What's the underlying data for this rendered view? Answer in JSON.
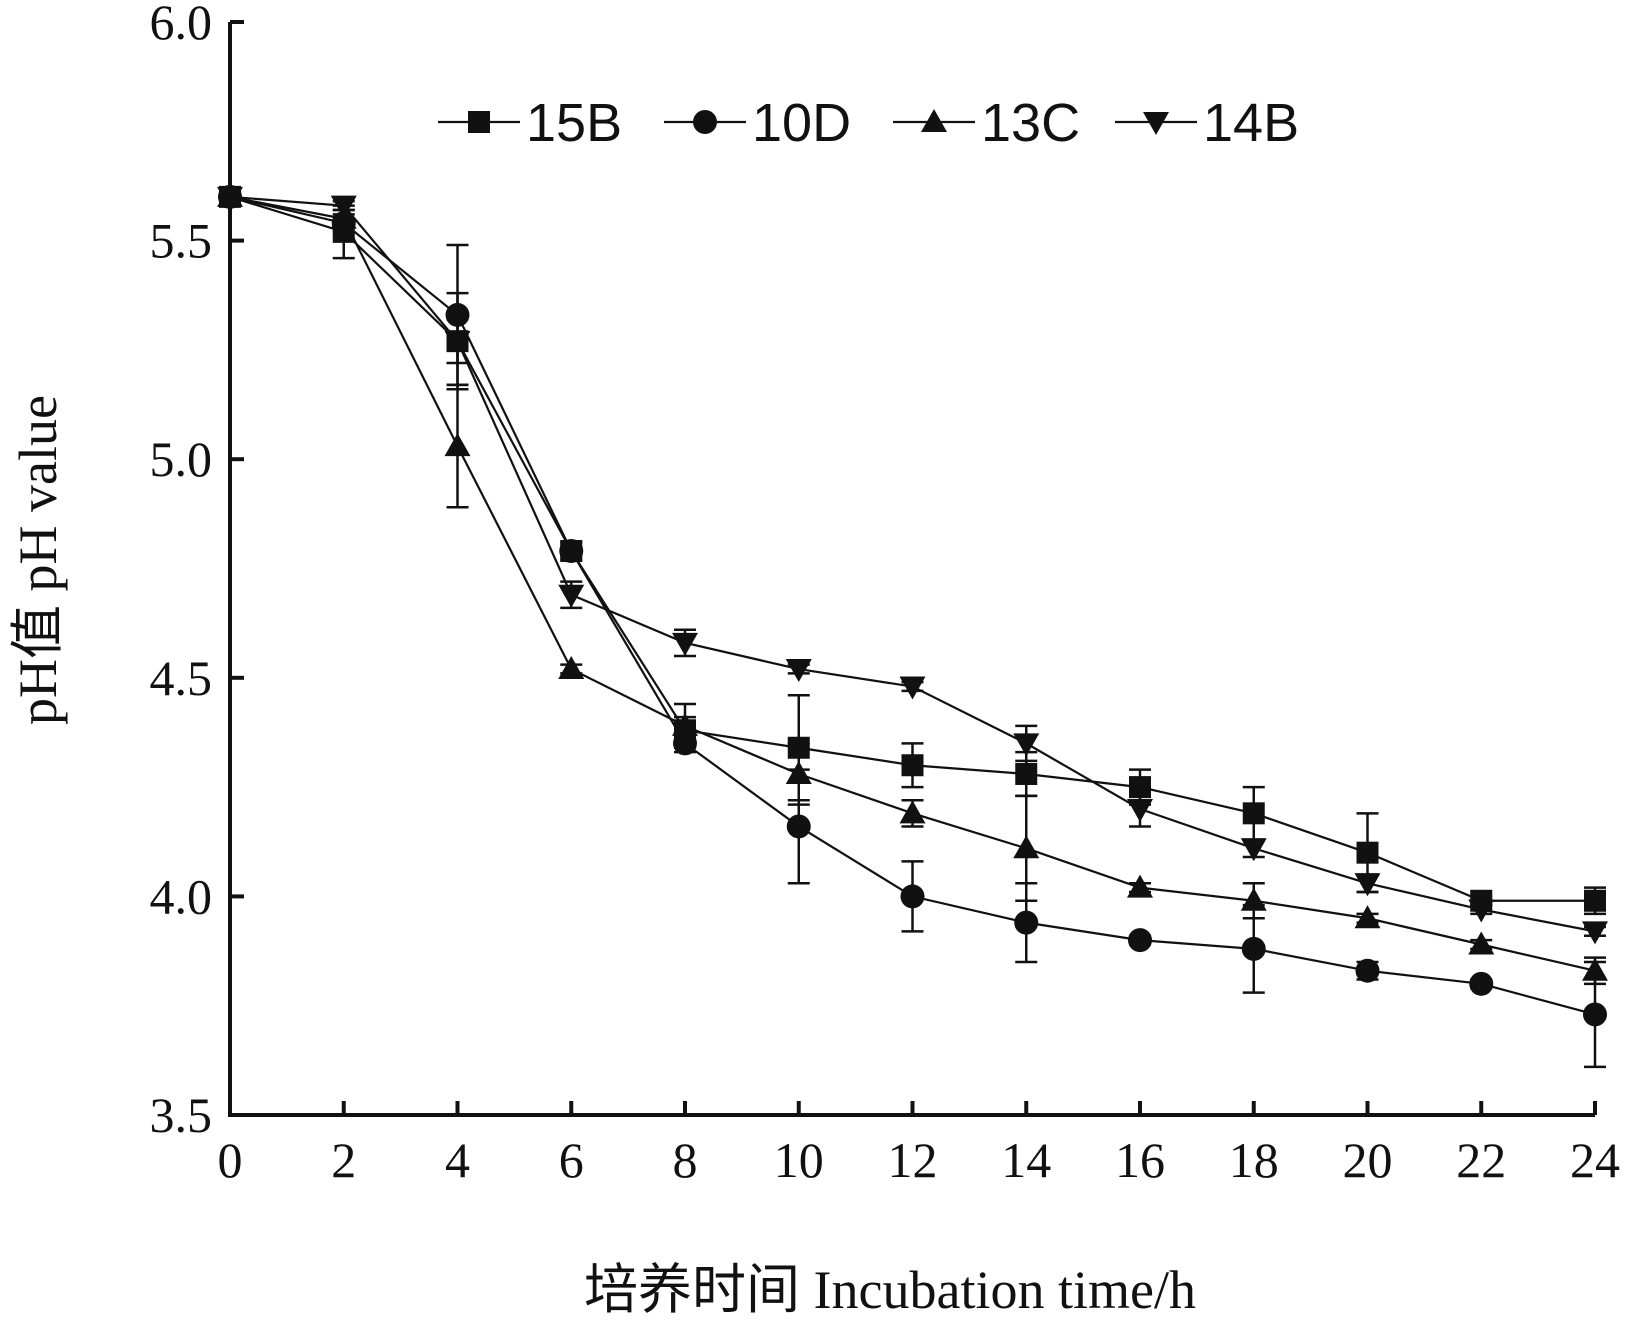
{
  "chart_data": {
    "type": "line",
    "xlabel": "培养时间 Incubation time/h",
    "ylabel": "pH值 pH value",
    "xlim": [
      0,
      24
    ],
    "ylim": [
      3.5,
      6.0
    ],
    "xticks": [
      "0",
      "2",
      "4",
      "6",
      "8",
      "10",
      "12",
      "14",
      "16",
      "18",
      "20",
      "22",
      "24"
    ],
    "yticks": [
      "3.5",
      "4.0",
      "4.5",
      "5.0",
      "5.5",
      "6.0"
    ],
    "grid": false,
    "legend_position": "top",
    "x": [
      0,
      2,
      4,
      6,
      8,
      10,
      12,
      14,
      16,
      18,
      20,
      22,
      24
    ],
    "series": [
      {
        "name": "15B",
        "marker": "square",
        "values": [
          5.6,
          5.52,
          5.27,
          4.79,
          4.38,
          4.34,
          4.3,
          4.28,
          4.25,
          4.19,
          4.1,
          3.99,
          3.99
        ],
        "errors": [
          0.0,
          0.06,
          0.11,
          0.02,
          0.03,
          0.12,
          0.05,
          0.05,
          0.04,
          0.06,
          0.09,
          0.01,
          0.03
        ]
      },
      {
        "name": "10D",
        "marker": "circle",
        "values": [
          5.6,
          5.54,
          5.33,
          4.79,
          4.35,
          4.16,
          4.0,
          3.94,
          3.9,
          3.88,
          3.83,
          3.8,
          3.73
        ],
        "errors": [
          0.0,
          0.02,
          0.16,
          0.01,
          0.02,
          0.13,
          0.08,
          0.09,
          0.01,
          0.1,
          0.02,
          0.01,
          0.12
        ]
      },
      {
        "name": "13C",
        "marker": "triangle-up",
        "values": [
          5.6,
          5.55,
          5.03,
          4.52,
          4.39,
          4.28,
          4.19,
          4.11,
          4.02,
          3.99,
          3.95,
          3.89,
          3.83
        ],
        "errors": [
          0.0,
          0.02,
          0.14,
          0.01,
          0.05,
          0.07,
          0.03,
          0.12,
          0.01,
          0.04,
          0.01,
          0.01,
          0.03
        ]
      },
      {
        "name": "14B",
        "marker": "triangle-down",
        "values": [
          5.6,
          5.58,
          5.27,
          4.69,
          4.58,
          4.52,
          4.48,
          4.35,
          4.2,
          4.11,
          4.03,
          3.97,
          3.92
        ],
        "errors": [
          0.0,
          0.01,
          0.05,
          0.03,
          0.03,
          0.01,
          0.01,
          0.04,
          0.04,
          0.02,
          0.02,
          0.01,
          0.01
        ]
      }
    ]
  }
}
